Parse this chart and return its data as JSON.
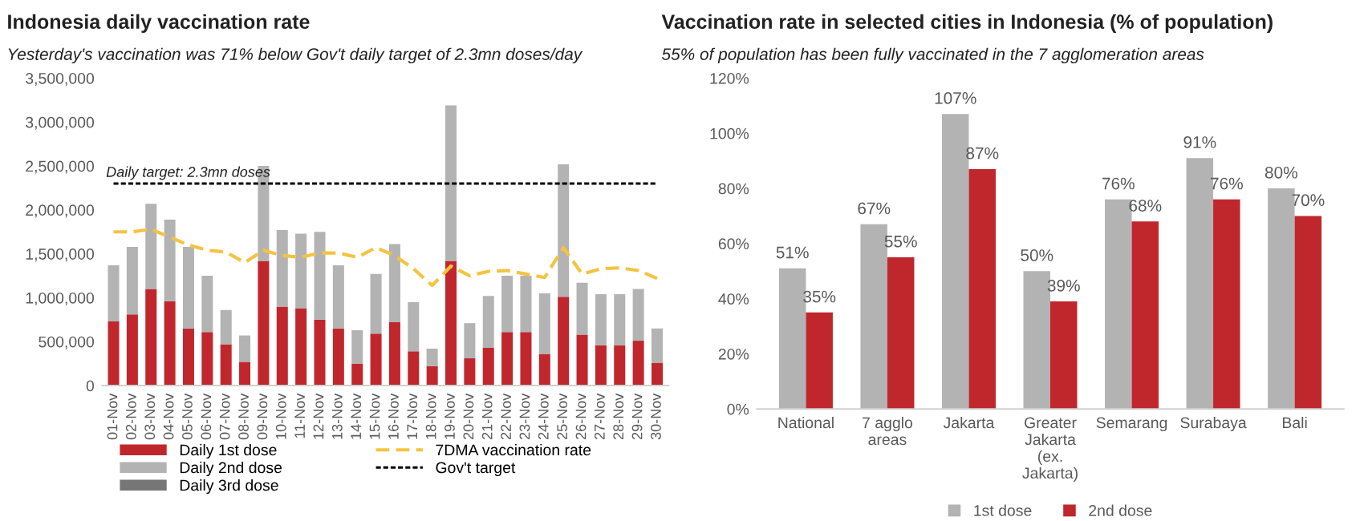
{
  "chart_data": [
    {
      "type": "bar",
      "stacked": true,
      "title": "Indonesia daily vaccination rate",
      "subtitle": "Yesterday's vaccination was 71% below Gov't daily target of 2.3mn doses/day",
      "categories": [
        "01-Nov",
        "02-Nov",
        "03-Nov",
        "04-Nov",
        "05-Nov",
        "06-Nov",
        "07-Nov",
        "08-Nov",
        "09-Nov",
        "10-Nov",
        "11-Nov",
        "12-Nov",
        "13-Nov",
        "14-Nov",
        "15-Nov",
        "16-Nov",
        "17-Nov",
        "18-Nov",
        "19-Nov",
        "20-Nov",
        "21-Nov",
        "22-Nov",
        "23-Nov",
        "24-Nov",
        "25-Nov",
        "26-Nov",
        "27-Nov",
        "28-Nov",
        "29-Nov",
        "30-Nov"
      ],
      "series": [
        {
          "name": "Daily 1st dose",
          "color": "#c0272d",
          "values": [
            730000,
            810000,
            1100000,
            960000,
            650000,
            610000,
            470000,
            270000,
            1420000,
            900000,
            880000,
            750000,
            650000,
            250000,
            590000,
            720000,
            390000,
            220000,
            1420000,
            310000,
            430000,
            610000,
            610000,
            360000,
            1010000,
            580000,
            460000,
            460000,
            510000,
            260000
          ]
        },
        {
          "name": "Daily 2nd dose",
          "color": "#b3b3b3",
          "values": [
            640000,
            770000,
            970000,
            930000,
            930000,
            640000,
            390000,
            300000,
            1080000,
            870000,
            850000,
            1000000,
            720000,
            380000,
            680000,
            890000,
            560000,
            200000,
            1770000,
            400000,
            590000,
            640000,
            640000,
            690000,
            1510000,
            590000,
            580000,
            580000,
            590000,
            390000
          ]
        },
        {
          "name": "Daily 3rd dose",
          "color": "#767676",
          "values": [
            0,
            0,
            0,
            0,
            0,
            0,
            0,
            0,
            0,
            0,
            0,
            0,
            0,
            0,
            0,
            0,
            0,
            0,
            0,
            0,
            0,
            0,
            0,
            0,
            0,
            0,
            0,
            0,
            0,
            0
          ]
        },
        {
          "name": "7DMA vaccination rate",
          "type": "line",
          "color": "#f5c342",
          "line_style": "dashed",
          "values": [
            1750000,
            1750000,
            1780000,
            1690000,
            1600000,
            1540000,
            1520000,
            1400000,
            1540000,
            1480000,
            1460000,
            1510000,
            1510000,
            1460000,
            1570000,
            1480000,
            1330000,
            1140000,
            1360000,
            1250000,
            1300000,
            1310000,
            1270000,
            1230000,
            1570000,
            1270000,
            1330000,
            1340000,
            1310000,
            1220000
          ]
        },
        {
          "name": "Gov't target",
          "type": "line",
          "color": "#000000",
          "line_style": "dotted",
          "values": [
            2300000,
            2300000,
            2300000,
            2300000,
            2300000,
            2300000,
            2300000,
            2300000,
            2300000,
            2300000,
            2300000,
            2300000,
            2300000,
            2300000,
            2300000,
            2300000,
            2300000,
            2300000,
            2300000,
            2300000,
            2300000,
            2300000,
            2300000,
            2300000,
            2300000,
            2300000,
            2300000,
            2300000,
            2300000,
            2300000
          ]
        }
      ],
      "annotations": [
        {
          "text": "Daily target: 2.3mn doses",
          "y": 2300000
        }
      ],
      "ylim": [
        0,
        3500000
      ],
      "yticks": [
        0,
        {
          "value": 500000,
          "label": "500,000"
        },
        {
          "value": 1000000,
          "label": "1,000,000"
        },
        {
          "value": 1500000,
          "label": "1,500,000"
        },
        {
          "value": 2000000,
          "label": "2,000,000"
        },
        {
          "value": 2500000,
          "label": "2,500,000"
        },
        {
          "value": 3000000,
          "label": "3,000,000"
        },
        {
          "value": 3500000,
          "label": "3,500,000"
        }
      ],
      "grid": false,
      "legend": "bottom"
    },
    {
      "type": "bar",
      "title": "Vaccination rate in selected cities in Indonesia (% of population)",
      "subtitle": "55% of population has been fully vaccinated in the 7 agglomeration areas",
      "categories": [
        "National",
        "7 agglo areas",
        "Jakarta",
        "Greater Jakarta (ex. Jakarta)",
        "Semarang",
        "Surabaya",
        "Bali"
      ],
      "series": [
        {
          "name": "1st dose",
          "color": "#b3b3b3",
          "values": [
            51,
            67,
            107,
            50,
            76,
            91,
            80
          ],
          "value_labels": [
            "51%",
            "67%",
            "107%",
            "50%",
            "76%",
            "91%",
            "80%"
          ]
        },
        {
          "name": "2nd dose",
          "color": "#c0272d",
          "values": [
            35,
            55,
            87,
            39,
            68,
            76,
            70
          ],
          "value_labels": [
            "35%",
            "55%",
            "87%",
            "39%",
            "68%",
            "76%",
            "70%"
          ]
        }
      ],
      "ylim": [
        0,
        120
      ],
      "yticks": [
        {
          "value": 0,
          "label": "0%"
        },
        {
          "value": 20,
          "label": "20%"
        },
        {
          "value": 40,
          "label": "40%"
        },
        {
          "value": 60,
          "label": "60%"
        },
        {
          "value": 80,
          "label": "80%"
        },
        {
          "value": 100,
          "label": "100%"
        },
        {
          "value": 120,
          "label": "120%"
        }
      ],
      "grid": false,
      "legend": "bottom"
    }
  ]
}
